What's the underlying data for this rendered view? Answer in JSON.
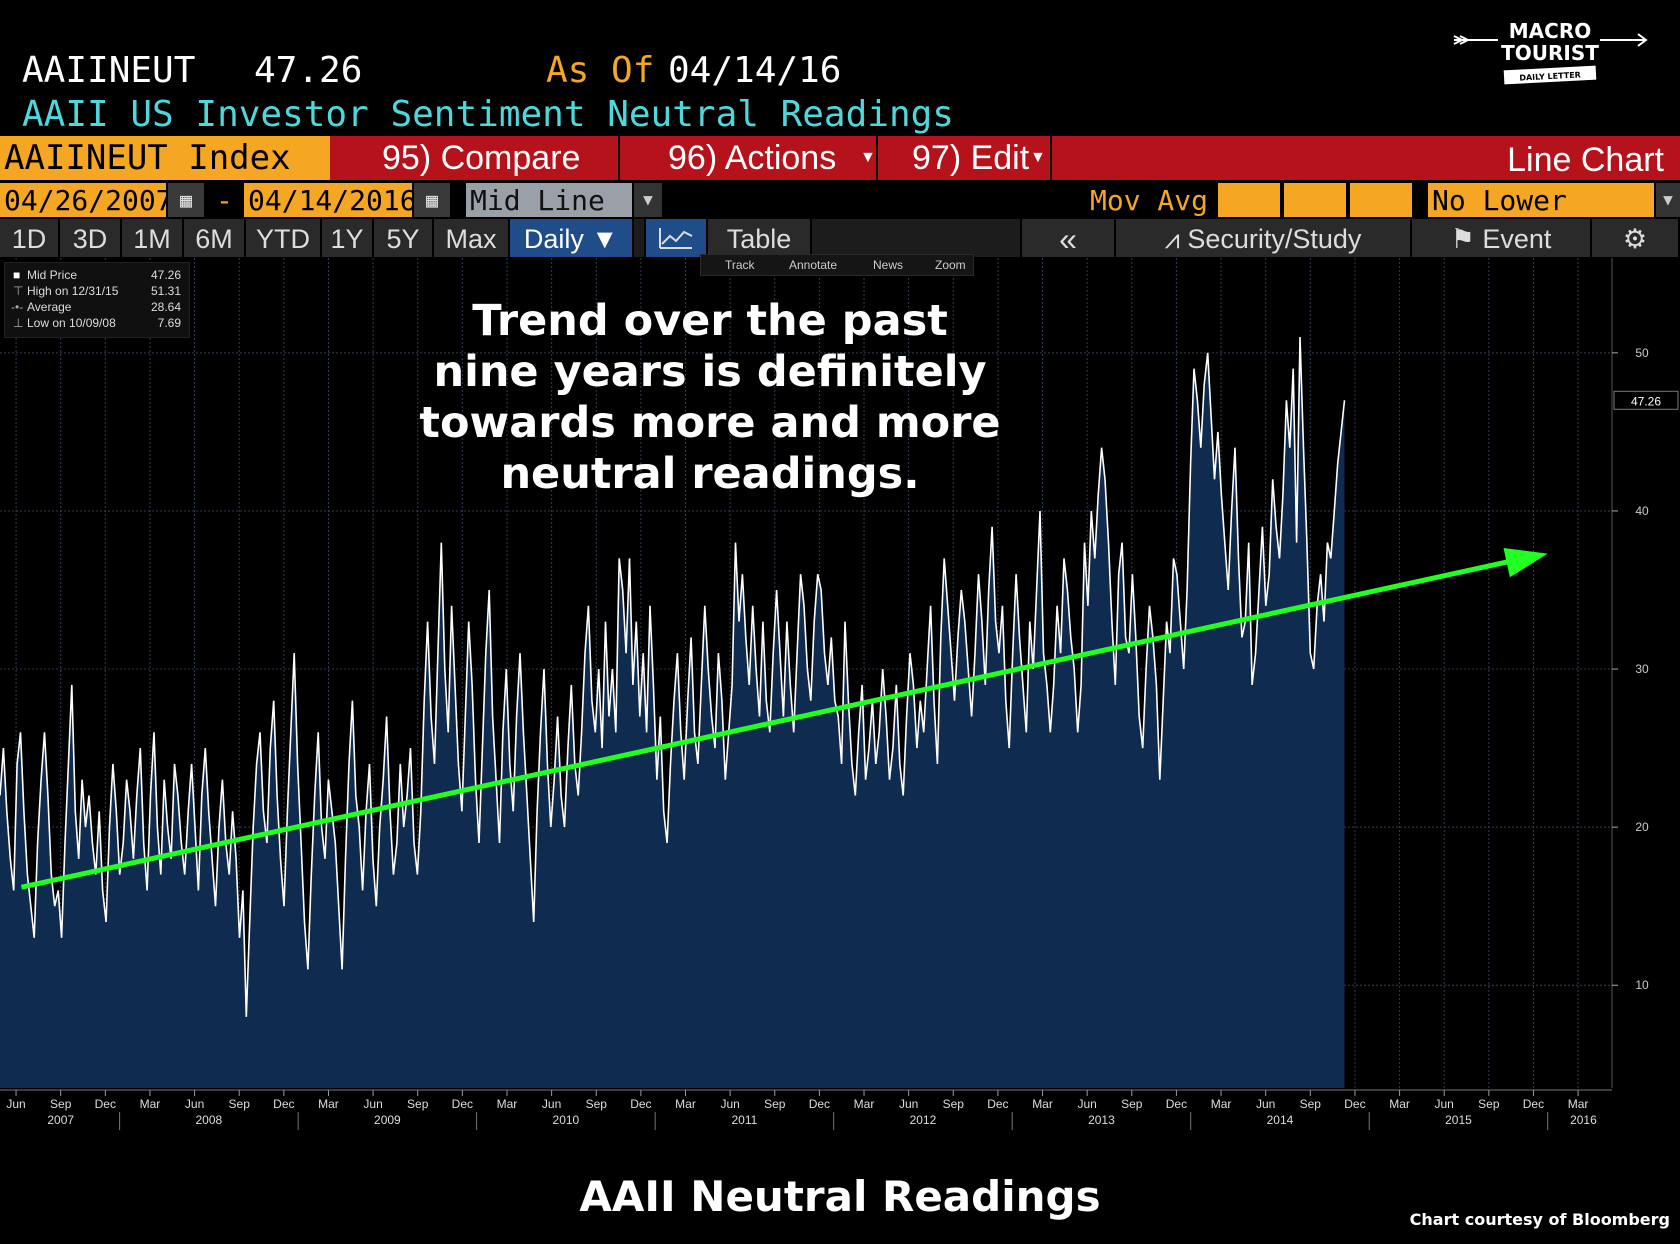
{
  "header": {
    "ticker": "AAIINEUT",
    "last_value": "47.26",
    "as_of_label": "As Of",
    "as_of_date": "04/14/16",
    "description": "AAII US Investor Sentiment Neutral Readings"
  },
  "logo": {
    "line1": "MACRO",
    "line2": "TOURIST",
    "line3": "DAILY LETTER"
  },
  "toolbar1": {
    "security": "AAIINEUT Index",
    "compare": "95) Compare",
    "actions": "96) Actions",
    "edit": "97) Edit",
    "chart_type": "Line Chart"
  },
  "toolbar2": {
    "start_date": "04/26/2007",
    "end_date": "04/14/2016",
    "dash": "-",
    "mid_line": "Mid Line",
    "mov_avg": "Mov Avg",
    "lower_chart": "No Lower Chart"
  },
  "toolbar3": {
    "tabs": [
      "1D",
      "3D",
      "1M",
      "6M",
      "YTD",
      "1Y",
      "5Y",
      "Max"
    ],
    "daily": "Daily ▼",
    "table": "Table",
    "collapse": "«",
    "security_study": "Security/Study",
    "event": "Event"
  },
  "tools": {
    "track": "Track",
    "annotate": "Annotate",
    "news": "News",
    "zoom": "Zoom"
  },
  "legend": {
    "rows": [
      {
        "label": "Mid Price",
        "value": "47.26"
      },
      {
        "label": "High on 12/31/15",
        "value": "51.31"
      },
      {
        "label": "Average",
        "value": "28.64"
      },
      {
        "label": "Low on 10/09/08",
        "value": "7.69"
      }
    ]
  },
  "annotation": {
    "lines": [
      "Trend over the past",
      "nine years is definitely",
      "towards more and more",
      "neutral readings."
    ]
  },
  "caption": "AAII Neutral Readings",
  "credit": "Chart courtesy of Bloomberg",
  "colors": {
    "orange": "#f5a623",
    "red_bar": "#b5121b",
    "cyan": "#4fd7dc",
    "fill": "#0f2b4f",
    "trend": "#22ff22"
  },
  "chart_data": {
    "type": "area",
    "title": "AAII US Investor Sentiment Neutral Readings",
    "ylim": [
      3.5,
      56
    ],
    "yticks": [
      10,
      20,
      30,
      40,
      50
    ],
    "xlim": [
      2007.33,
      2016.36
    ],
    "x_month_ticks": [
      {
        "t": 2007.42,
        "label": "Jun"
      },
      {
        "t": 2007.67,
        "label": "Sep"
      },
      {
        "t": 2007.92,
        "label": "Dec"
      },
      {
        "t": 2008.17,
        "label": "Mar"
      },
      {
        "t": 2008.42,
        "label": "Jun"
      },
      {
        "t": 2008.67,
        "label": "Sep"
      },
      {
        "t": 2008.92,
        "label": "Dec"
      },
      {
        "t": 2009.17,
        "label": "Mar"
      },
      {
        "t": 2009.42,
        "label": "Jun"
      },
      {
        "t": 2009.67,
        "label": "Sep"
      },
      {
        "t": 2009.92,
        "label": "Dec"
      },
      {
        "t": 2010.17,
        "label": "Mar"
      },
      {
        "t": 2010.42,
        "label": "Jun"
      },
      {
        "t": 2010.67,
        "label": "Sep"
      },
      {
        "t": 2010.92,
        "label": "Dec"
      },
      {
        "t": 2011.17,
        "label": "Mar"
      },
      {
        "t": 2011.42,
        "label": "Jun"
      },
      {
        "t": 2011.67,
        "label": "Sep"
      },
      {
        "t": 2011.92,
        "label": "Dec"
      },
      {
        "t": 2012.17,
        "label": "Mar"
      },
      {
        "t": 2012.42,
        "label": "Jun"
      },
      {
        "t": 2012.67,
        "label": "Sep"
      },
      {
        "t": 2012.92,
        "label": "Dec"
      },
      {
        "t": 2013.17,
        "label": "Mar"
      },
      {
        "t": 2013.42,
        "label": "Jun"
      },
      {
        "t": 2013.67,
        "label": "Sep"
      },
      {
        "t": 2013.92,
        "label": "Dec"
      },
      {
        "t": 2014.17,
        "label": "Mar"
      },
      {
        "t": 2014.42,
        "label": "Jun"
      },
      {
        "t": 2014.67,
        "label": "Sep"
      },
      {
        "t": 2014.92,
        "label": "Dec"
      },
      {
        "t": 2015.17,
        "label": "Mar"
      },
      {
        "t": 2015.42,
        "label": "Jun"
      },
      {
        "t": 2015.67,
        "label": "Sep"
      },
      {
        "t": 2015.92,
        "label": "Dec"
      },
      {
        "t": 2016.17,
        "label": "Mar"
      }
    ],
    "x_year_labels": [
      {
        "t": 2007.67,
        "label": "2007"
      },
      {
        "t": 2008.5,
        "label": "2008"
      },
      {
        "t": 2009.5,
        "label": "2009"
      },
      {
        "t": 2010.5,
        "label": "2010"
      },
      {
        "t": 2011.5,
        "label": "2011"
      },
      {
        "t": 2012.5,
        "label": "2012"
      },
      {
        "t": 2013.5,
        "label": "2013"
      },
      {
        "t": 2014.5,
        "label": "2014"
      },
      {
        "t": 2015.5,
        "label": "2015"
      },
      {
        "t": 2016.2,
        "label": "2016"
      }
    ],
    "series": [
      {
        "name": "AAIINEUT Mid Price",
        "x_start": 2007.33,
        "x_step_weeks": 1,
        "values": [
          22,
          25,
          21,
          18,
          16,
          24,
          26,
          21,
          17,
          15,
          13,
          19,
          23,
          26,
          22,
          17,
          15,
          16,
          13,
          19,
          24,
          29,
          21,
          18,
          23,
          20,
          22,
          19,
          17,
          21,
          16,
          14,
          20,
          24,
          21,
          17,
          19,
          23,
          21,
          18,
          22,
          25,
          19,
          16,
          22,
          26,
          20,
          17,
          23,
          20,
          18,
          24,
          22,
          19,
          17,
          21,
          24,
          20,
          16,
          22,
          25,
          21,
          18,
          15,
          20,
          23,
          19,
          17,
          21,
          18,
          13,
          16,
          8,
          14,
          20,
          24,
          26,
          21,
          19,
          25,
          28,
          22,
          18,
          15,
          21,
          26,
          31,
          24,
          19,
          14,
          11,
          17,
          22,
          26,
          20,
          18,
          23,
          21,
          19,
          15,
          11,
          18,
          24,
          28,
          22,
          20,
          16,
          21,
          24,
          18,
          15,
          20,
          23,
          27,
          21,
          17,
          19,
          24,
          20,
          22,
          25,
          19,
          17,
          21,
          28,
          33,
          27,
          24,
          31,
          38,
          30,
          26,
          34,
          29,
          24,
          21,
          27,
          33,
          29,
          23,
          19,
          25,
          31,
          35,
          27,
          23,
          19,
          26,
          30,
          24,
          21,
          27,
          31,
          26,
          22,
          18,
          14,
          21,
          26,
          30,
          24,
          20,
          23,
          27,
          22,
          20,
          25,
          29,
          24,
          22,
          26,
          31,
          34,
          28,
          26,
          30,
          25,
          33,
          27,
          30,
          26,
          37,
          35,
          31,
          37,
          29,
          33,
          27,
          31,
          26,
          34,
          29,
          23,
          27,
          21,
          19,
          24,
          28,
          31,
          26,
          23,
          28,
          32,
          26,
          24,
          29,
          34,
          30,
          27,
          25,
          31,
          28,
          23,
          26,
          29,
          38,
          33,
          36,
          32,
          29,
          34,
          30,
          27,
          33,
          28,
          26,
          31,
          35,
          31,
          27,
          33,
          29,
          26,
          31,
          36,
          34,
          30,
          28,
          33,
          36,
          35,
          31,
          29,
          32,
          28,
          27,
          24,
          33,
          28,
          24,
          22,
          26,
          29,
          23,
          25,
          28,
          24,
          26,
          30,
          27,
          23,
          25,
          29,
          24,
          22,
          27,
          31,
          29,
          25,
          28,
          26,
          30,
          34,
          28,
          24,
          32,
          37,
          34,
          31,
          28,
          32,
          35,
          33,
          30,
          27,
          31,
          36,
          33,
          29,
          35,
          39,
          33,
          31,
          34,
          28,
          25,
          31,
          36,
          32,
          29,
          26,
          33,
          30,
          35,
          40,
          31,
          29,
          26,
          29,
          34,
          31,
          37,
          35,
          32,
          30,
          26,
          29,
          38,
          34,
          40,
          37,
          41,
          44,
          42,
          38,
          33,
          29,
          36,
          38,
          32,
          31,
          36,
          32,
          27,
          25,
          30,
          34,
          32,
          29,
          23,
          28,
          33,
          31,
          37,
          36,
          33,
          30,
          35,
          43,
          49,
          47,
          44,
          48,
          50,
          46,
          42,
          45,
          41,
          38,
          35,
          40,
          44,
          37,
          32,
          33,
          38,
          29,
          31,
          35,
          39,
          34,
          36,
          42,
          39,
          37,
          41,
          47,
          44,
          49,
          38,
          51,
          44,
          38,
          31,
          30,
          34,
          36,
          33,
          38,
          37,
          40,
          43,
          45,
          47
        ]
      }
    ],
    "trend_line": {
      "start": {
        "x": 2007.45,
        "y": 16.2
      },
      "end": {
        "x": 2016.0,
        "y": 37.3
      }
    },
    "last_label": "47.26"
  }
}
